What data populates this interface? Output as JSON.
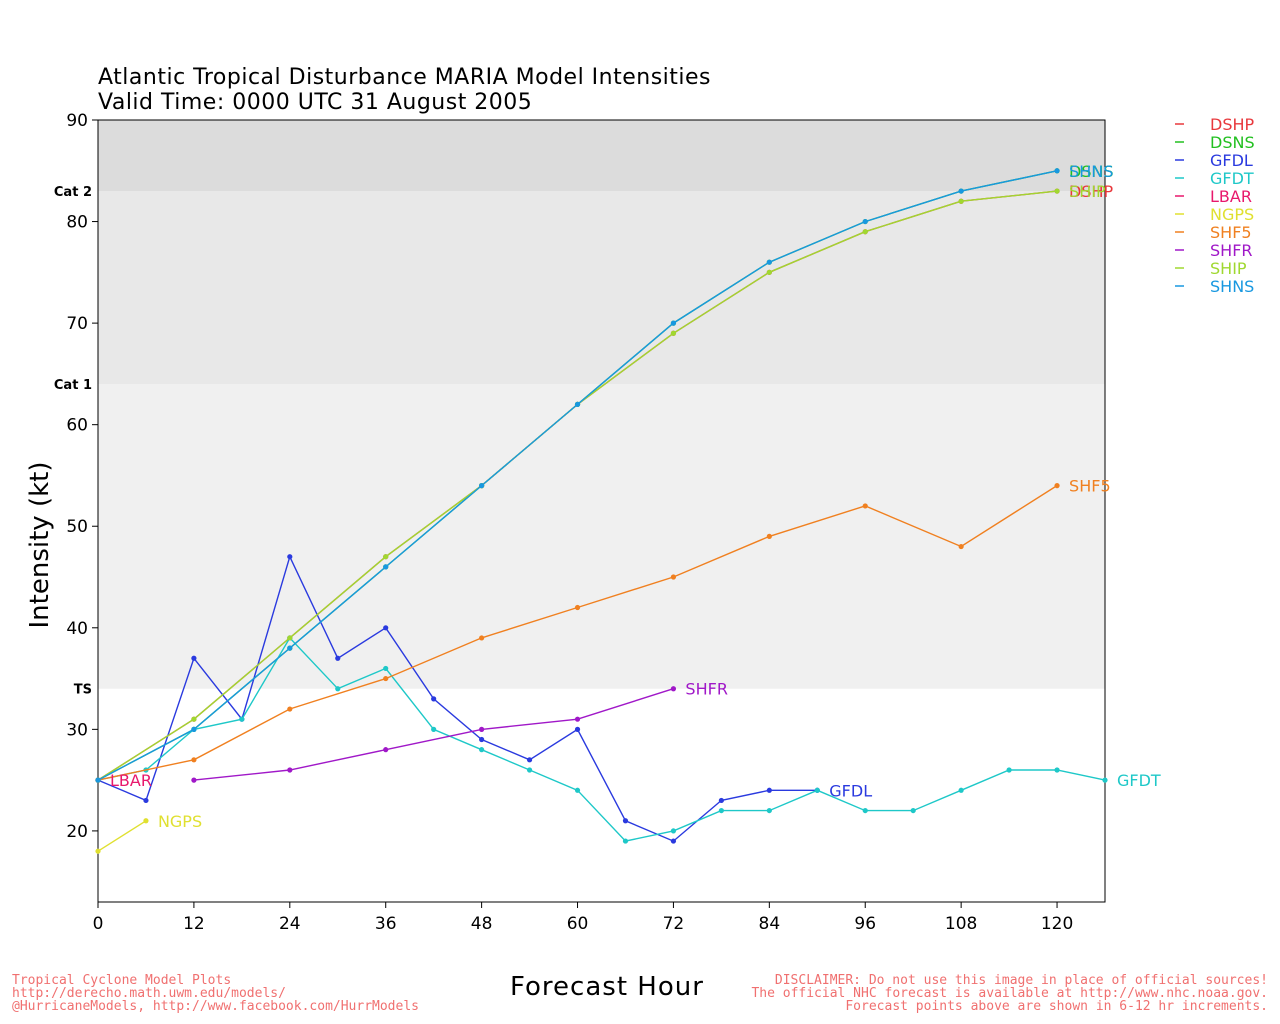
{
  "title_lines": [
    "Atlantic Tropical Disturbance MARIA Model Intensities",
    "Valid Time: 0000 UTC 31 August 2005"
  ],
  "footer_left": [
    "Tropical Cyclone Model Plots",
    "http://derecho.math.uwm.edu/models/",
    "@HurricaneModels, http://www.facebook.com/HurrModels"
  ],
  "footer_right": [
    "DISCLAIMER: Do not use this image in place of official sources!",
    "The official NHC forecast is available at http://www.nhc.noaa.gov.",
    "Forecast points above are shown in 6-12 hr increments."
  ],
  "chart_data": {
    "type": "line",
    "xlabel": "Forecast Hour",
    "ylabel": "Intensity (kt)",
    "xlim": [
      0,
      126
    ],
    "ylim": [
      13,
      90
    ],
    "xticks": [
      0,
      12,
      24,
      36,
      48,
      60,
      72,
      84,
      96,
      108,
      120
    ],
    "yticks": [
      20,
      30,
      40,
      50,
      60,
      70,
      80,
      90
    ],
    "categories": [
      {
        "label": "TS",
        "from": 34,
        "to": 64,
        "color": "#f0f0f0"
      },
      {
        "label": "Cat 1",
        "from": 64,
        "to": 83,
        "color": "#e8e8e8"
      },
      {
        "label": "Cat 2",
        "from": 83,
        "to": 90,
        "color": "#dcdcdc"
      }
    ],
    "legend_position": "right",
    "series": [
      {
        "name": "DSHP",
        "color": "#e8383c",
        "label_at_end": true,
        "points": [
          [
            0,
            25
          ],
          [
            12,
            31
          ],
          [
            24,
            39
          ],
          [
            36,
            47
          ],
          [
            48,
            54
          ],
          [
            60,
            62
          ],
          [
            72,
            69
          ],
          [
            84,
            75
          ],
          [
            96,
            79
          ],
          [
            108,
            82
          ],
          [
            120,
            83
          ]
        ]
      },
      {
        "name": "DSNS",
        "color": "#22c020",
        "label_at_end": true,
        "points": [
          [
            0,
            25
          ],
          [
            12,
            30
          ],
          [
            24,
            38
          ],
          [
            36,
            46
          ],
          [
            48,
            54
          ],
          [
            60,
            62
          ],
          [
            72,
            70
          ],
          [
            84,
            76
          ],
          [
            96,
            80
          ],
          [
            108,
            83
          ],
          [
            120,
            85
          ]
        ]
      },
      {
        "name": "GFDL",
        "color": "#2a3adf",
        "label_at_end": true,
        "points": [
          [
            0,
            25
          ],
          [
            6,
            23
          ],
          [
            12,
            37
          ],
          [
            18,
            31
          ],
          [
            24,
            47
          ],
          [
            30,
            37
          ],
          [
            36,
            40
          ],
          [
            42,
            33
          ],
          [
            48,
            29
          ],
          [
            54,
            27
          ],
          [
            60,
            30
          ],
          [
            66,
            21
          ],
          [
            72,
            19
          ],
          [
            78,
            23
          ],
          [
            84,
            24
          ],
          [
            90,
            24
          ]
        ]
      },
      {
        "name": "GFDT",
        "color": "#1ec8c8",
        "label_at_end": true,
        "points": [
          [
            0,
            25
          ],
          [
            6,
            26
          ],
          [
            12,
            30
          ],
          [
            18,
            31
          ],
          [
            24,
            39
          ],
          [
            30,
            34
          ],
          [
            36,
            36
          ],
          [
            42,
            30
          ],
          [
            48,
            28
          ],
          [
            54,
            26
          ],
          [
            60,
            24
          ],
          [
            66,
            19
          ],
          [
            72,
            20
          ],
          [
            78,
            22
          ],
          [
            84,
            22
          ],
          [
            90,
            24
          ],
          [
            96,
            22
          ],
          [
            102,
            22
          ],
          [
            108,
            24
          ],
          [
            114,
            26
          ],
          [
            120,
            26
          ],
          [
            126,
            25
          ]
        ]
      },
      {
        "name": "LBAR",
        "color": "#e8186c",
        "label_at_end": true,
        "points": [
          [
            0,
            25
          ]
        ]
      },
      {
        "name": "NGPS",
        "color": "#e0e030",
        "label_at_end": true,
        "points": [
          [
            0,
            18
          ],
          [
            6,
            21
          ]
        ]
      },
      {
        "name": "SHF5",
        "color": "#f08020",
        "label_at_end": true,
        "points": [
          [
            0,
            25
          ],
          [
            12,
            27
          ],
          [
            24,
            32
          ],
          [
            36,
            35
          ],
          [
            48,
            39
          ],
          [
            60,
            42
          ],
          [
            72,
            45
          ],
          [
            84,
            49
          ],
          [
            96,
            52
          ],
          [
            108,
            48
          ],
          [
            120,
            54
          ]
        ]
      },
      {
        "name": "SHFR",
        "color": "#a018c8",
        "label_at_end": true,
        "points": [
          [
            12,
            25
          ],
          [
            24,
            26
          ],
          [
            36,
            28
          ],
          [
            48,
            30
          ],
          [
            60,
            31
          ],
          [
            72,
            34
          ]
        ]
      },
      {
        "name": "SHIP",
        "color": "#a0d830",
        "label_at_end": true,
        "points": [
          [
            0,
            25
          ],
          [
            12,
            31
          ],
          [
            24,
            39
          ],
          [
            36,
            47
          ],
          [
            48,
            54
          ],
          [
            60,
            62
          ],
          [
            72,
            69
          ],
          [
            84,
            75
          ],
          [
            96,
            79
          ],
          [
            108,
            82
          ],
          [
            120,
            83
          ]
        ]
      },
      {
        "name": "SHNS",
        "color": "#1898e0",
        "label_at_end": true,
        "points": [
          [
            0,
            25
          ],
          [
            12,
            30
          ],
          [
            24,
            38
          ],
          [
            36,
            46
          ],
          [
            48,
            54
          ],
          [
            60,
            62
          ],
          [
            72,
            70
          ],
          [
            84,
            76
          ],
          [
            96,
            80
          ],
          [
            108,
            83
          ],
          [
            120,
            85
          ]
        ]
      }
    ]
  }
}
